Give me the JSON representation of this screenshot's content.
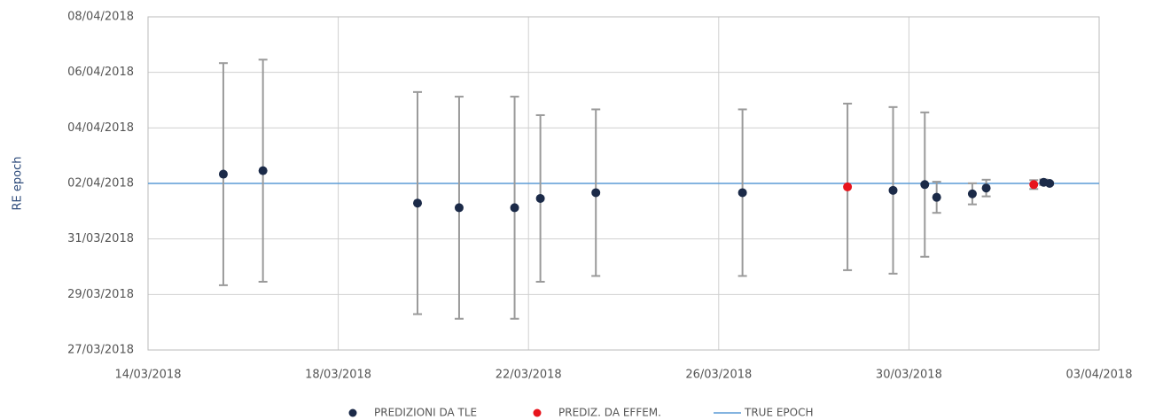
{
  "chart_data": {
    "type": "scatter",
    "y_label": "RE epoch",
    "xlim": [
      "2018-03-14",
      "2018-04-03"
    ],
    "xticks": [
      {
        "value": "2018-03-14",
        "label": "14/03/2018"
      },
      {
        "value": "2018-03-18",
        "label": "18/03/2018"
      },
      {
        "value": "2018-03-22",
        "label": "22/03/2018"
      },
      {
        "value": "2018-03-26",
        "label": "26/03/2018"
      },
      {
        "value": "2018-03-30",
        "label": "30/03/2018"
      },
      {
        "value": "2018-04-03",
        "label": "03/04/2018"
      }
    ],
    "ylim": [
      "2018-03-27",
      "2018-04-08"
    ],
    "yticks": [
      {
        "value": "2018-03-27",
        "label": "27/03/2018"
      },
      {
        "value": "2018-03-29",
        "label": "29/03/2018"
      },
      {
        "value": "2018-03-31",
        "label": "31/03/2018"
      },
      {
        "value": "2018-04-02",
        "label": "02/04/2018"
      },
      {
        "value": "2018-04-04",
        "label": "04/04/2018"
      },
      {
        "value": "2018-04-06",
        "label": "06/04/2018"
      },
      {
        "value": "2018-04-08",
        "label": "08/04/2018"
      }
    ],
    "grid": true,
    "series": [
      {
        "name": "PREDIZIONI DA TLE",
        "color": "#1b2a48",
        "x": [
          "2018-03-15T14:00",
          "2018-03-16T10:00",
          "2018-03-19T16:00",
          "2018-03-20T13:00",
          "2018-03-21T17:00",
          "2018-03-22T06:00",
          "2018-03-23T10:00",
          "2018-03-26T12:00",
          "2018-03-29T16:00",
          "2018-03-30T08:00",
          "2018-03-30T14:00",
          "2018-03-31T08:00",
          "2018-03-31T15:00",
          "2018-04-01T20:00",
          "2018-04-01T23:00"
        ],
        "values": [
          "2018-04-02T08:00",
          "2018-04-02T11:00",
          "2018-04-01T07:00",
          "2018-04-01T03:00",
          "2018-04-01T03:00",
          "2018-04-01T11:00",
          "2018-04-01T16:00",
          "2018-04-01T16:00",
          "2018-04-01T18:00",
          "2018-04-01T23:00",
          "2018-04-01T12:00",
          "2018-04-01T15:00",
          "2018-04-01T20:00",
          "2018-04-02T01:00",
          "2018-04-02T00:00"
        ],
        "errors_days": [
          4.0,
          4.0,
          4.0,
          4.0,
          4.0,
          3.0,
          3.0,
          3.0,
          3.0,
          2.6,
          0.56,
          0.38,
          0.3,
          0.1,
          0.05
        ]
      },
      {
        "name": "PREDIZ. DA EFFEM.",
        "color": "#e8141c",
        "x": [
          "2018-03-28T17:00",
          "2018-04-01T15:00"
        ],
        "values": [
          "2018-04-01T21:00",
          "2018-04-01T23:00"
        ],
        "errors_days": [
          3.0,
          0.16
        ]
      }
    ],
    "reference_line": {
      "name": "TRUE EPOCH",
      "value": "2018-04-02",
      "color": "#5b9bd5"
    }
  }
}
